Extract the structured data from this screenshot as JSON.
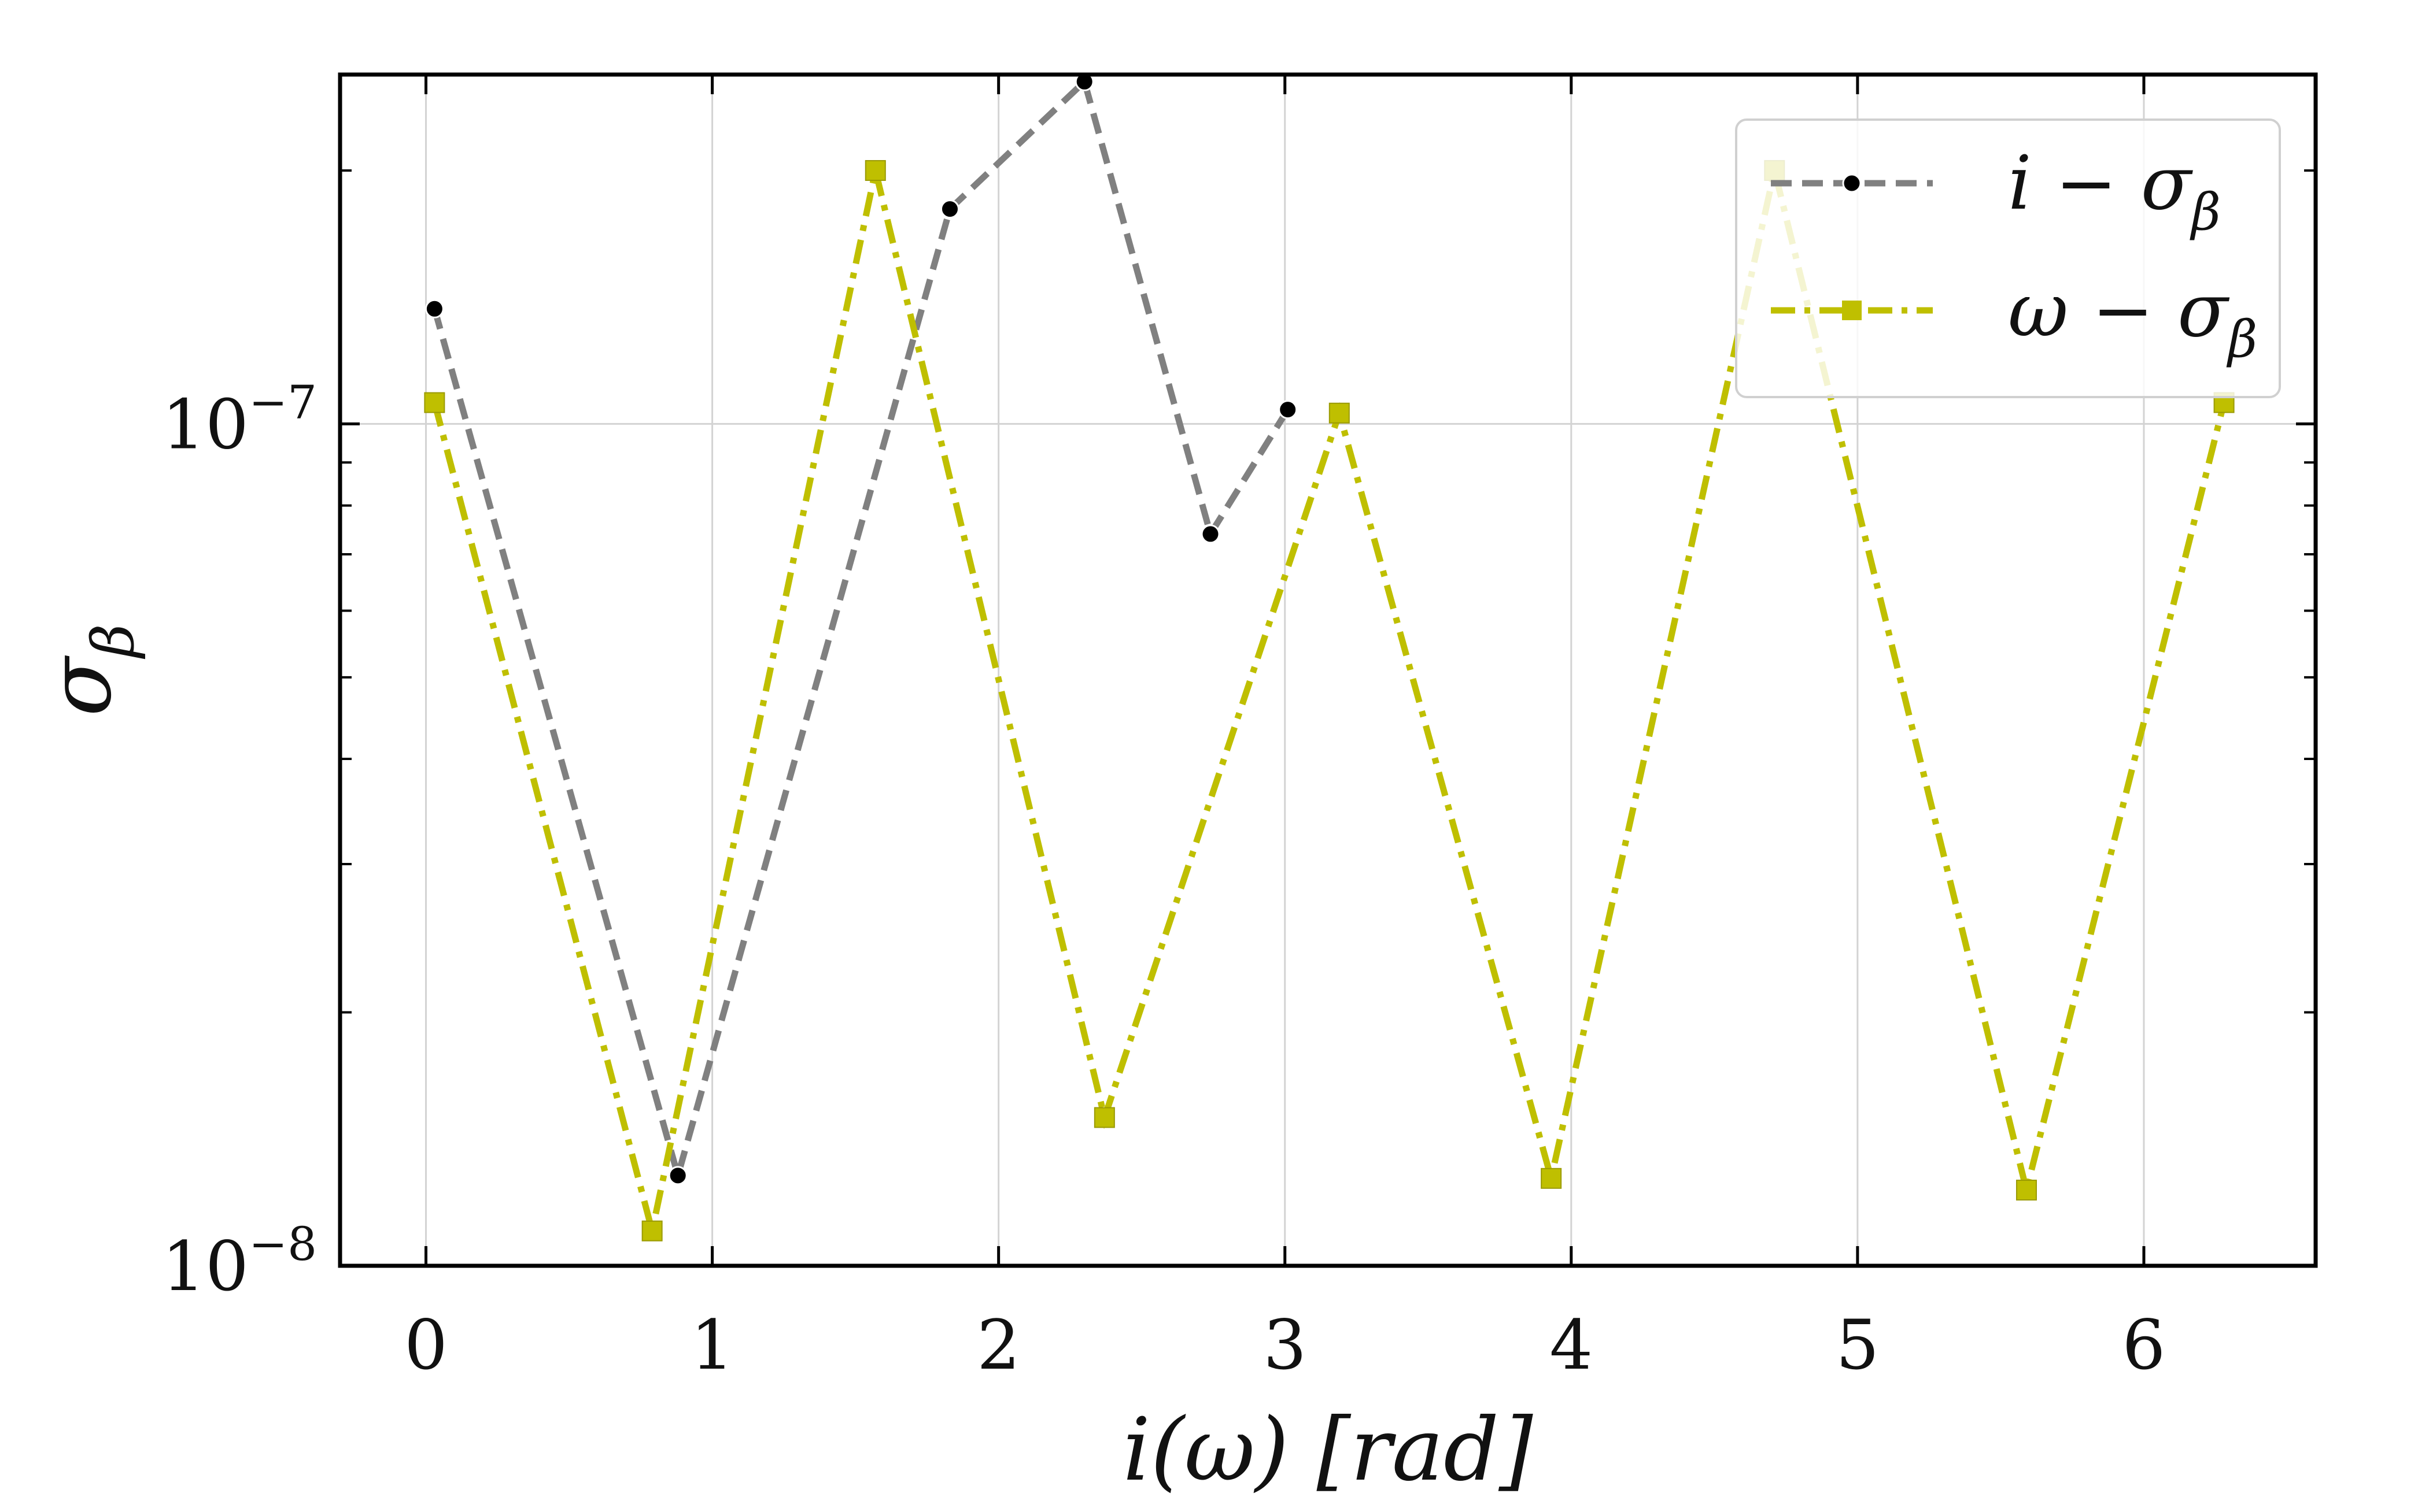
{
  "chart_data": {
    "type": "line",
    "xlabel": "i(ω) [rad]",
    "ylabel": "σ_β",
    "xlim": [
      -0.3,
      6.6
    ],
    "ylim": [
      1e-08,
      2.6e-07
    ],
    "yscale": "log",
    "grid": true,
    "legend_position": "top-right",
    "x_ticks": [
      0,
      1,
      2,
      3,
      4,
      5,
      6
    ],
    "x_tick_labels": [
      "0",
      "1",
      "2",
      "3",
      "4",
      "5",
      "6"
    ],
    "y_ticks": [
      1e-08,
      1e-07
    ],
    "y_tick_labels": [
      {
        "base": "10",
        "exp": "−8"
      },
      {
        "base": "10",
        "exp": "−7"
      }
    ],
    "series": [
      {
        "name": "i − σ_β",
        "color": "#808080",
        "marker": "circle",
        "line_style": "dashed",
        "x": [
          0.03,
          0.88,
          1.83,
          2.3,
          2.74,
          3.01
        ],
        "y": [
          1.37e-07,
          1.28e-08,
          1.8e-07,
          2.55e-07,
          7.4e-08,
          1.04e-07
        ]
      },
      {
        "name": "ω − σ_β",
        "color": "#bfbf00",
        "marker": "square",
        "line_style": "dashdot",
        "x": [
          0.03,
          0.79,
          1.57,
          2.37,
          3.19,
          3.93,
          4.71,
          5.59,
          6.28
        ],
        "y": [
          1.06e-07,
          1.1e-08,
          2e-07,
          1.5e-08,
          1.03e-07,
          1.27e-08,
          2e-07,
          1.23e-08,
          1.06e-07
        ]
      }
    ]
  }
}
